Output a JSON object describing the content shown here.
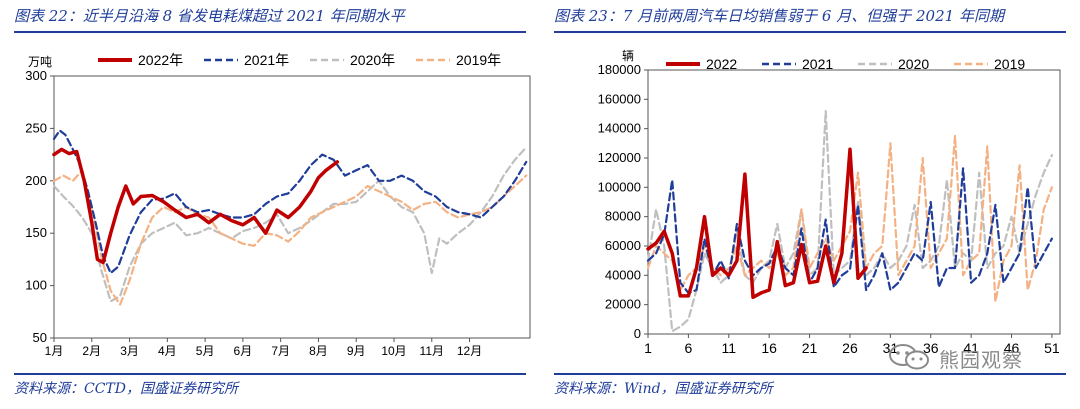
{
  "left": {
    "title": "图表 22：近半月沿海 8 省发电耗煤超过 2021 年同期水平",
    "source": "资料来源：CCTD，国盛证券研究所"
  },
  "right": {
    "title": "图表 23：7 月前两周汽车日均销售弱于 6 月、但强于 2021 年同期",
    "source": "资料来源：Wind，国盛证券研究所"
  },
  "watermark": {
    "text": "熊园观察"
  },
  "colors": {
    "s2022": "#c00000",
    "s2021": "#1f3d99",
    "s2020": "#bfbfbf",
    "s2019": "#f4b183",
    "title": "#1f3d99"
  },
  "chart_data": [
    {
      "type": "line",
      "title": "图表 22：近半月沿海 8 省发电耗煤超过 2021 年同期水平",
      "ylabel": "万吨",
      "xlabel": "",
      "ylim": [
        50,
        300
      ],
      "yticks": [
        50,
        100,
        150,
        200,
        250,
        300
      ],
      "x_tick_labels": [
        "1月",
        "2月",
        "3月",
        "4月",
        "5月",
        "6月",
        "7月",
        "8月",
        "9月",
        "10月",
        "11月",
        "12月"
      ],
      "x_range": [
        0,
        12.6
      ],
      "series": [
        {
          "name": "2022年",
          "style": "solid",
          "x": [
            0,
            0.2,
            0.4,
            0.6,
            0.8,
            1.0,
            1.15,
            1.3,
            1.5,
            1.7,
            1.9,
            2.1,
            2.3,
            2.6,
            2.9,
            3.2,
            3.5,
            3.8,
            4.1,
            4.4,
            4.7,
            5.0,
            5.3,
            5.6,
            5.9,
            6.2,
            6.5,
            6.8,
            7.0,
            7.2,
            7.5
          ],
          "values": [
            225,
            230,
            226,
            228,
            200,
            160,
            125,
            122,
            150,
            175,
            195,
            178,
            185,
            186,
            180,
            172,
            165,
            168,
            160,
            168,
            162,
            158,
            165,
            150,
            172,
            165,
            175,
            190,
            203,
            210,
            218
          ]
        },
        {
          "name": "2021年",
          "style": "dashed",
          "x": [
            0,
            0.15,
            0.3,
            0.5,
            0.7,
            0.9,
            1.1,
            1.3,
            1.5,
            1.7,
            2.0,
            2.3,
            2.6,
            2.9,
            3.2,
            3.5,
            3.8,
            4.1,
            4.4,
            4.7,
            5.0,
            5.3,
            5.6,
            5.9,
            6.2,
            6.5,
            6.8,
            7.1,
            7.4,
            7.7,
            8.0,
            8.3,
            8.6,
            8.9,
            9.2,
            9.5,
            9.8,
            10.1,
            10.4,
            10.7,
            11.0,
            11.3,
            11.6,
            11.9,
            12.2,
            12.5
          ],
          "values": [
            240,
            248,
            244,
            230,
            215,
            190,
            160,
            128,
            112,
            118,
            148,
            170,
            182,
            183,
            188,
            175,
            170,
            172,
            168,
            165,
            165,
            168,
            178,
            185,
            188,
            200,
            215,
            225,
            220,
            205,
            210,
            215,
            200,
            200,
            205,
            200,
            190,
            185,
            175,
            170,
            168,
            165,
            175,
            185,
            200,
            218
          ]
        },
        {
          "name": "2020年",
          "style": "dashed",
          "x": [
            0,
            0.25,
            0.5,
            0.75,
            1.0,
            1.25,
            1.5,
            1.75,
            2.0,
            2.3,
            2.6,
            2.9,
            3.2,
            3.5,
            3.8,
            4.1,
            4.4,
            4.7,
            5.0,
            5.3,
            5.6,
            5.9,
            6.2,
            6.5,
            6.8,
            7.1,
            7.4,
            7.7,
            8.0,
            8.3,
            8.6,
            8.9,
            9.2,
            9.5,
            9.8,
            10.0,
            10.2,
            10.4,
            10.7,
            11.0,
            11.3,
            11.6,
            11.9,
            12.2,
            12.5
          ],
          "values": [
            195,
            185,
            176,
            165,
            150,
            115,
            85,
            90,
            118,
            140,
            150,
            155,
            160,
            148,
            150,
            155,
            150,
            145,
            152,
            155,
            160,
            168,
            150,
            155,
            162,
            170,
            178,
            178,
            180,
            190,
            200,
            185,
            175,
            170,
            150,
            112,
            145,
            140,
            150,
            158,
            170,
            185,
            205,
            220,
            232
          ]
        },
        {
          "name": "2019年",
          "style": "dashed",
          "x": [
            0,
            0.25,
            0.5,
            0.75,
            1.0,
            1.25,
            1.5,
            1.75,
            2.0,
            2.3,
            2.6,
            2.9,
            3.2,
            3.5,
            3.8,
            4.1,
            4.4,
            4.7,
            5.0,
            5.3,
            5.6,
            5.9,
            6.2,
            6.5,
            6.8,
            7.1,
            7.4,
            7.7,
            8.0,
            8.3,
            8.6,
            8.9,
            9.2,
            9.5,
            9.8,
            10.1,
            10.4,
            10.7,
            11.0,
            11.3,
            11.6,
            11.9,
            12.2,
            12.5
          ],
          "values": [
            200,
            205,
            200,
            210,
            175,
            128,
            95,
            82,
            105,
            140,
            165,
            175,
            170,
            175,
            168,
            165,
            150,
            145,
            140,
            138,
            150,
            148,
            142,
            152,
            165,
            170,
            175,
            180,
            185,
            195,
            190,
            185,
            180,
            172,
            178,
            180,
            170,
            165,
            168,
            170,
            175,
            185,
            195,
            205
          ]
        }
      ]
    },
    {
      "type": "line",
      "title": "图表 23：7 月前两周汽车日均销售弱于 6 月、但强于 2021 年同期",
      "ylabel": "辆",
      "xlabel": "",
      "ylim": [
        0,
        180000
      ],
      "yticks": [
        0,
        20000,
        40000,
        60000,
        80000,
        100000,
        120000,
        140000,
        160000,
        180000
      ],
      "x_ticks": [
        1,
        6,
        11,
        16,
        21,
        26,
        31,
        36,
        41,
        46,
        51
      ],
      "x_range": [
        1,
        52
      ],
      "series": [
        {
          "name": "2022",
          "style": "solid",
          "x": [
            1,
            2,
            3,
            4,
            5,
            6,
            7,
            8,
            9,
            10,
            11,
            12,
            13,
            14,
            15,
            16,
            17,
            18,
            19,
            20,
            21,
            22,
            23,
            24,
            25,
            26,
            27,
            28
          ],
          "values": [
            58000,
            62000,
            70000,
            55000,
            26000,
            26000,
            45000,
            80000,
            40000,
            45000,
            40000,
            50000,
            109000,
            25000,
            28000,
            30000,
            63000,
            33000,
            35000,
            61000,
            35000,
            36000,
            60000,
            35000,
            55000,
            126000,
            38000,
            45000
          ]
        },
        {
          "name": "2021",
          "style": "dashed",
          "x": [
            1,
            2,
            3,
            4,
            5,
            6,
            7,
            8,
            9,
            10,
            11,
            12,
            13,
            14,
            15,
            16,
            17,
            18,
            19,
            20,
            21,
            22,
            23,
            24,
            25,
            26,
            27,
            28,
            29,
            30,
            31,
            32,
            33,
            34,
            35,
            36,
            37,
            38,
            39,
            40,
            41,
            42,
            43,
            44,
            45,
            46,
            47,
            48,
            49,
            50,
            51
          ],
          "values": [
            50000,
            55000,
            68000,
            105000,
            35000,
            28000,
            30000,
            65000,
            40000,
            50000,
            38000,
            75000,
            50000,
            40000,
            45000,
            48000,
            60000,
            45000,
            40000,
            72000,
            35000,
            45000,
            78000,
            32000,
            40000,
            44000,
            88000,
            30000,
            40000,
            55000,
            30000,
            35000,
            45000,
            55000,
            50000,
            90000,
            32000,
            45000,
            45000,
            113000,
            35000,
            40000,
            55000,
            88000,
            35000,
            45000,
            55000,
            100000,
            45000,
            55000,
            65000
          ]
        },
        {
          "name": "2020",
          "style": "dashed",
          "x": [
            1,
            2,
            3,
            4,
            5,
            6,
            7,
            8,
            9,
            10,
            11,
            12,
            13,
            14,
            15,
            16,
            17,
            18,
            19,
            20,
            21,
            22,
            23,
            24,
            25,
            26,
            27,
            28,
            29,
            30,
            31,
            32,
            33,
            34,
            35,
            36,
            37,
            38,
            39,
            40,
            41,
            42,
            43,
            44,
            45,
            46,
            47,
            48,
            49,
            50,
            51
          ],
          "values": [
            50000,
            85000,
            60000,
            2000,
            5000,
            10000,
            30000,
            55000,
            45000,
            35000,
            40000,
            70000,
            40000,
            35000,
            45000,
            50000,
            75000,
            45000,
            55000,
            85000,
            40000,
            45000,
            152000,
            40000,
            45000,
            50000,
            90000,
            40000,
            45000,
            55000,
            45000,
            50000,
            60000,
            88000,
            45000,
            50000,
            60000,
            105000,
            45000,
            55000,
            50000,
            110000,
            45000,
            55000,
            60000,
            80000,
            55000,
            75000,
            95000,
            110000,
            122000
          ]
        },
        {
          "name": "2019",
          "style": "dashed",
          "x": [
            1,
            2,
            3,
            4,
            5,
            6,
            7,
            8,
            9,
            10,
            11,
            12,
            13,
            14,
            15,
            16,
            17,
            18,
            19,
            20,
            21,
            22,
            23,
            24,
            25,
            26,
            27,
            28,
            29,
            30,
            31,
            32,
            33,
            34,
            35,
            36,
            37,
            38,
            39,
            40,
            41,
            42,
            43,
            44,
            45,
            46,
            47,
            48,
            49,
            50,
            51
          ],
          "values": [
            45000,
            60000,
            55000,
            50000,
            30000,
            40000,
            45000,
            60000,
            45000,
            40000,
            45000,
            60000,
            40000,
            45000,
            50000,
            45000,
            55000,
            40000,
            45000,
            85000,
            45000,
            55000,
            65000,
            50000,
            60000,
            70000,
            110000,
            45000,
            55000,
            60000,
            130000,
            40000,
            50000,
            60000,
            120000,
            45000,
            55000,
            65000,
            135000,
            40000,
            50000,
            55000,
            128000,
            22000,
            50000,
            60000,
            115000,
            30000,
            50000,
            85000,
            100000
          ]
        }
      ]
    }
  ]
}
